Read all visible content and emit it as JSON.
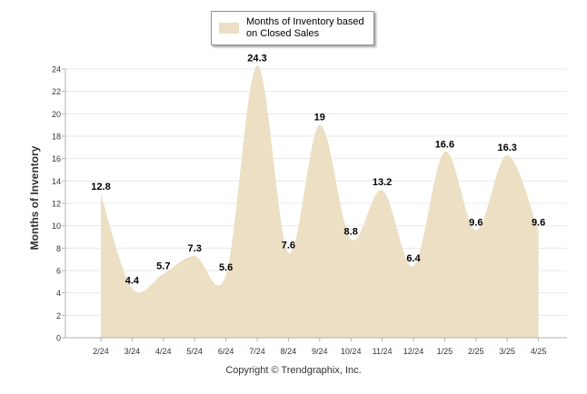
{
  "chart_data": {
    "type": "area",
    "categories": [
      "2/24",
      "3/24",
      "4/24",
      "5/24",
      "6/24",
      "7/24",
      "8/24",
      "9/24",
      "10/24",
      "11/24",
      "12/24",
      "1/25",
      "2/25",
      "3/25",
      "4/25"
    ],
    "series": [
      {
        "name": "Months of Inventory based on Closed Sales",
        "values": [
          12.8,
          4.4,
          5.7,
          7.3,
          5.6,
          24.3,
          7.6,
          19,
          8.8,
          13.2,
          6.4,
          16.6,
          9.6,
          16.3,
          9.6
        ]
      }
    ],
    "data_labels": [
      "12.8",
      "4.4",
      "5.7",
      "7.3",
      "5.6",
      "24.3",
      "7.6",
      "19",
      "8.8",
      "13.2",
      "6.4",
      "16.6",
      "9.6",
      "16.3",
      "9.6"
    ],
    "title": "",
    "xlabel": "",
    "ylabel": "Months of Inventory",
    "ylim": [
      0,
      24
    ],
    "yticks": [
      0,
      2,
      4,
      6,
      8,
      10,
      12,
      14,
      16,
      18,
      20,
      22,
      24
    ],
    "grid": true,
    "legend_position": "top-center",
    "colors": {
      "area": "#ecdfc3",
      "grid": "#e8e8e8",
      "axis": "#b0b0b0"
    }
  },
  "footer": {
    "copyright": "Copyright © Trendgraphix, Inc."
  }
}
